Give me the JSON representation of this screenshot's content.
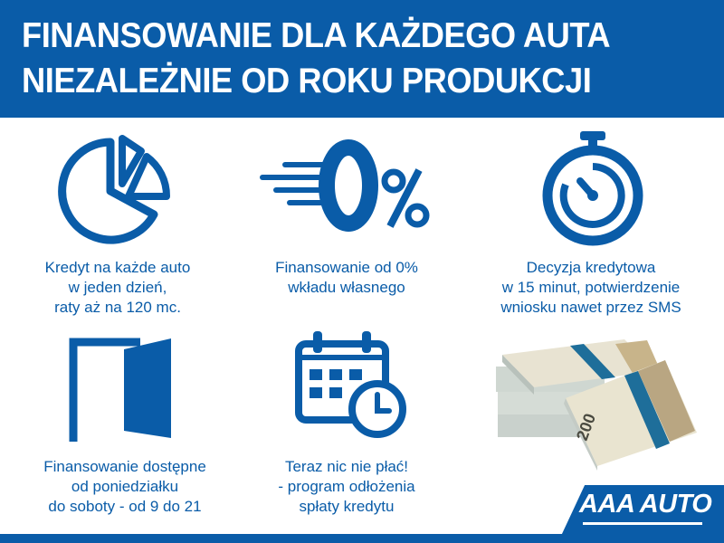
{
  "header": {
    "line1": "FINANSOWANIE DLA KAŻDEGO AUTA",
    "line2": "NIEZALEŻNIE OD ROKU PRODUKCJI"
  },
  "features": [
    {
      "icon": "pie-chart-icon",
      "lines": [
        "Kredyt na każde auto",
        "w jeden dzień,",
        "raty aż na 120 mc."
      ]
    },
    {
      "icon": "zero-percent-icon",
      "lines": [
        "Finansowanie od 0%",
        "wkładu własnego"
      ]
    },
    {
      "icon": "stopwatch-icon",
      "lines": [
        "Decyzja kredytowa",
        "w 15 minut, potwierdzenie",
        "wniosku nawet przez SMS"
      ]
    },
    {
      "icon": "open-door-icon",
      "lines": [
        "Finansowanie dostępne",
        "od poniedziałku",
        "do soboty - od 9 do 21"
      ]
    },
    {
      "icon": "calendar-clock-icon",
      "lines": [
        "Teraz nic nie płać!",
        "- program odłożenia",
        "spłaty kredytu"
      ]
    }
  ],
  "zero_percent": {
    "digit": "0",
    "symbol": "%"
  },
  "banknote_value": "200",
  "brand": {
    "logo_text": "AAA AUTO",
    "color": "#0a5ca8"
  }
}
